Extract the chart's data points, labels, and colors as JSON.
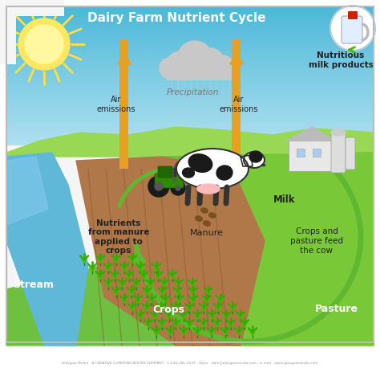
{
  "title": "Dairy Farm Nutrient Cycle",
  "bg_color": "#ffffff",
  "sky_blue": "#4db8d8",
  "sky_light": "#a0ddf0",
  "sky_horizon": "#c8eef0",
  "green_dark": "#5aaa30",
  "green_mid": "#6dc040",
  "green_light": "#88d050",
  "green_pasture": "#78c838",
  "dirt_brown": "#b07848",
  "dirt_dark": "#8a5c30",
  "water_blue": "#60b8d8",
  "water_light": "#88ccee",
  "sun_yellow": "#ffe860",
  "cloud_gray": "#c8c8c8",
  "orange_arrow": "#e8a020",
  "green_arrow": "#60b830",
  "label_dark": "#222222",
  "label_white": "#ffffff",
  "title_color": "#000000",
  "footer_color": "#999999",
  "footer_text": "Glasgow Media   A CREATIVE COMMUNICATIONS COMPANY   1-540-286-2539 - Voice   dale@glasgowmedia.com - E-mail   www.glasgowmedia.com",
  "labels": {
    "stream": "Stream",
    "crops": "Crops",
    "pasture": "Pasture",
    "manure": "Manure",
    "milk": "Milk",
    "air_left": "Air\nemissions",
    "air_right": "Air\nemissions",
    "precipitation": "Precipitation",
    "nutrients": "Nutrients\nfrom manure\napplied to\ncrops",
    "crops_feed": "Crops and\npasture feed\nthe cow",
    "milk_products": "Nutritious\nmilk products"
  }
}
